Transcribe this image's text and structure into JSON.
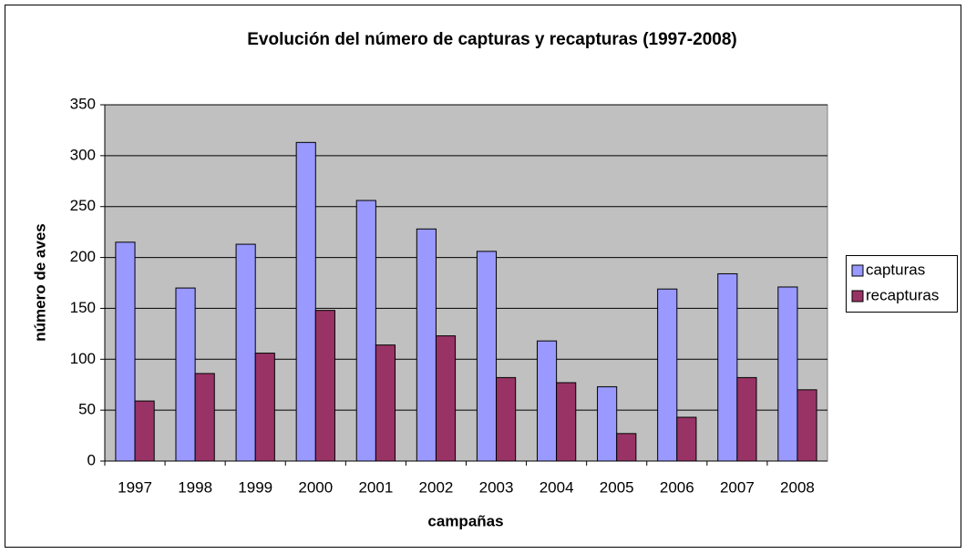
{
  "chart_data": {
    "type": "bar",
    "title": "Evolución del número de capturas y recapturas (1997-2008)",
    "x_label": "campañas",
    "y_label": "número de aves",
    "categories": [
      "1997",
      "1998",
      "1999",
      "2000",
      "2001",
      "2002",
      "2003",
      "2004",
      "2005",
      "2006",
      "2007",
      "2008"
    ],
    "series": [
      {
        "name": "capturas",
        "color": "#9999ff",
        "values": [
          215,
          170,
          213,
          313,
          256,
          228,
          206,
          118,
          73,
          169,
          184,
          171
        ]
      },
      {
        "name": "recapturas",
        "color": "#993366",
        "values": [
          59,
          86,
          106,
          148,
          114,
          123,
          82,
          77,
          27,
          43,
          82,
          70
        ]
      }
    ],
    "ylim": [
      0,
      350
    ],
    "yticks": [
      0,
      50,
      100,
      150,
      200,
      250,
      300,
      350
    ],
    "grid": true,
    "legend": "right"
  }
}
